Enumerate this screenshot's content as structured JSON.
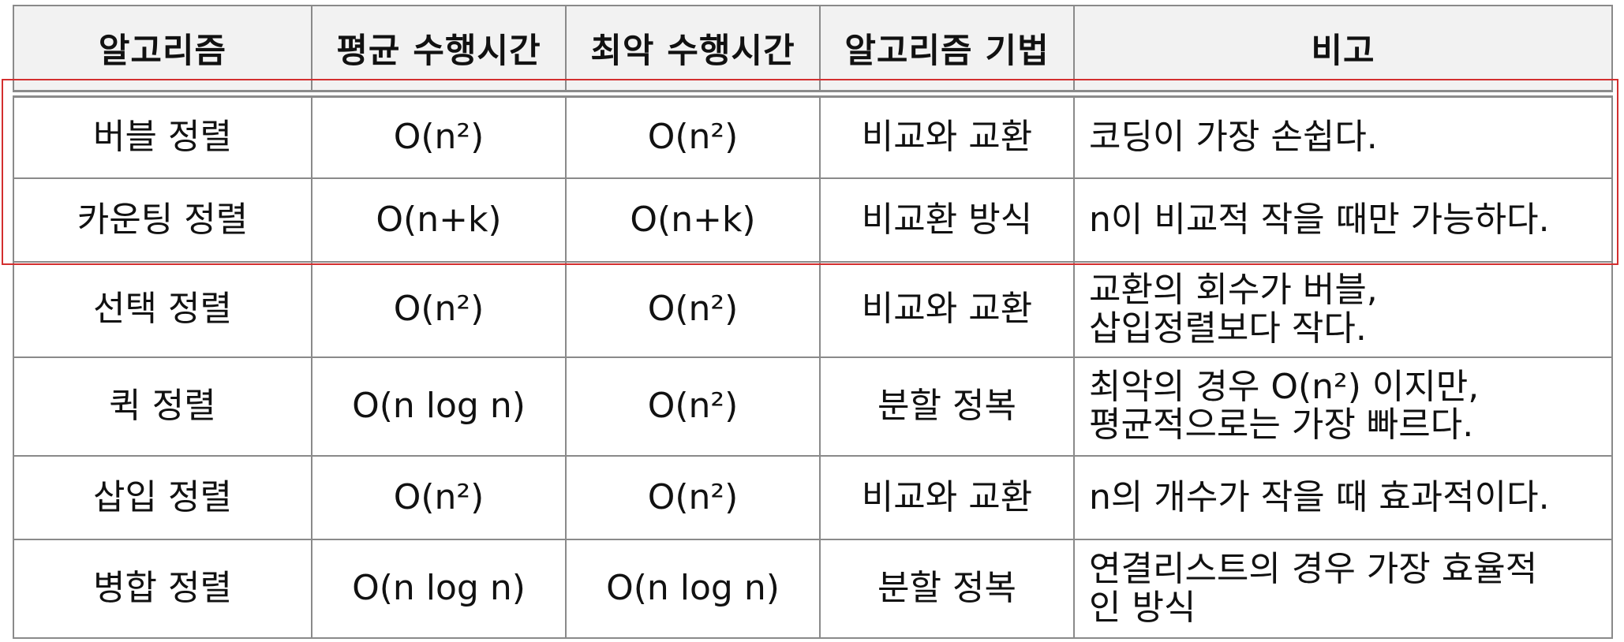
{
  "table": {
    "headers": [
      "알고리즘",
      "평균 수행시간",
      "최악 수행시간",
      "알고리즘 기법",
      "비고"
    ],
    "rows": [
      {
        "name": "버블 정렬",
        "average": "O(n²)",
        "worst": "O(n²)",
        "technique": "비교와 교환",
        "note": [
          "코딩이 가장 손쉽다."
        ]
      },
      {
        "name": "카운팅 정렬",
        "average": "O(n+k)",
        "worst": "O(n+k)",
        "technique": "비교환 방식",
        "note": [
          "n이 비교적 작을 때만 가능하다."
        ]
      },
      {
        "name": "선택 정렬",
        "average": "O(n²)",
        "worst": "O(n²)",
        "technique": "비교와 교환",
        "note": [
          "교환의 회수가 버블,",
          "삽입정렬보다 작다."
        ]
      },
      {
        "name": "퀵 정렬",
        "average": "O(n log n)",
        "worst": "O(n²)",
        "technique": "분할 정복",
        "note": [
          "최악의 경우 O(n²) 이지만,",
          "평균적으로는 가장 빠르다."
        ]
      },
      {
        "name": "삽입 정렬",
        "average": "O(n²)",
        "worst": "O(n²)",
        "technique": "비교와 교환",
        "note": [
          "n의 개수가 작을 때 효과적이다."
        ]
      },
      {
        "name": "병합 정렬",
        "average": "O(n log n)",
        "worst": "O(n log n)",
        "technique": "분할 정복",
        "note": [
          "연결리스트의 경우 가장 효율적",
          "인 방식"
        ]
      }
    ]
  },
  "highlight": {
    "color": "#d32f2f",
    "covers_rows": [
      "버블 정렬",
      "카운팅 정렬"
    ]
  },
  "colors": {
    "header_background": "#f2f2f2",
    "border": "#8a8a8a",
    "text": "#111111"
  }
}
